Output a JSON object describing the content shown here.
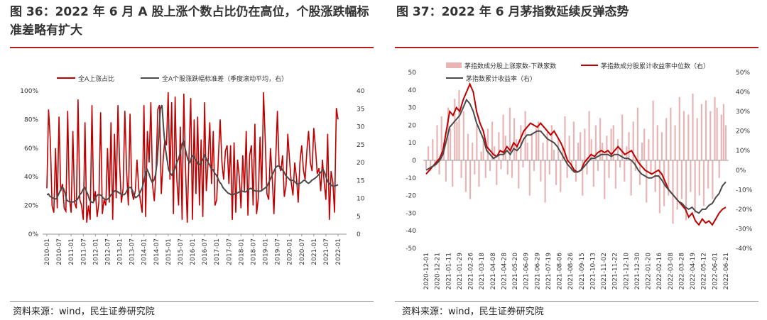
{
  "left_panel": {
    "title": "图 36：2022 年 6 月 A 股上涨个数占比仍在高位，个股涨跌幅标准差略有扩大",
    "source": "资料来源：wind，民生证券研究院"
  },
  "right_panel": {
    "title": "图 37：2022 年 6 月茅指数延续反弹态势",
    "source": "资料来源：wind，民生证券研究院"
  },
  "colors": {
    "red": "#c00000",
    "dark": "#4a4a4a",
    "pink": "#e8b4b4",
    "accent": "#b71c1c"
  },
  "chart_data": [
    {
      "type": "line",
      "title": "",
      "legend_position": "top",
      "x_ticks": [
        "2010-01",
        "2010-07",
        "2011-01",
        "2011-07",
        "2012-01",
        "2012-07",
        "2013-01",
        "2013-07",
        "2014-01",
        "2014-07",
        "2015-01",
        "2015-07",
        "2016-01",
        "2016-07",
        "2017-01",
        "2017-07",
        "2018-01",
        "2018-07",
        "2019-01",
        "2019-07",
        "2020-01",
        "2020-07",
        "2021-01",
        "2021-07",
        "2022-01"
      ],
      "y_left_ticks": [
        "0%",
        "20%",
        "40%",
        "60%",
        "80%",
        "100%"
      ],
      "y_right_ticks": [
        "0",
        "5",
        "10",
        "15",
        "20",
        "25",
        "30",
        "35",
        "40"
      ],
      "ylim_left": [
        0,
        1
      ],
      "ylim_right": [
        0,
        40
      ],
      "series": [
        {
          "name": "全A上涨占比",
          "axis": "left",
          "color": "#c00000",
          "values": [
            0.32,
            0.87,
            0.65,
            0.2,
            0.15,
            0.6,
            0.18,
            0.82,
            0.3,
            0.35,
            0.18,
            0.16,
            0.86,
            0.25,
            0.15,
            0.72,
            0.22,
            0.18,
            0.94,
            0.24,
            0.2,
            0.1,
            0.78,
            0.08,
            0.2,
            0.1,
            0.9,
            0.23,
            0.3,
            0.12,
            0.22,
            0.85,
            0.14,
            0.24,
            0.2,
            0.6,
            0.22,
            0.78,
            0.1,
            0.7,
            0.25,
            0.9,
            0.48,
            0.22,
            0.32,
            0.86,
            0.44,
            0.2,
            0.84,
            0.3,
            0.24,
            0.3,
            0.52,
            0.32,
            0.23,
            0.15,
            0.9,
            0.12,
            0.72,
            0.5,
            0.92,
            0.34,
            0.23,
            0.45,
            0.87,
            0.9,
            0.28,
            0.5,
            0.66,
            0.62,
            0.99,
            0.38,
            0.92,
            0.14,
            0.96,
            0.38,
            0.2,
            0.75,
            0.1,
            0.98,
            0.46,
            0.08,
            0.55,
            0.95,
            0.1,
            0.8,
            0.28,
            0.82,
            0.2,
            0.66,
            0.12,
            0.92,
            0.3,
            0.5,
            0.78,
            0.35,
            0.72,
            0.2,
            0.24,
            0.55,
            0.8,
            0.5,
            0.38,
            0.58,
            0.62,
            0.35,
            0.62,
            0.1,
            0.64,
            0.15,
            0.52,
            0.4,
            0.18,
            0.55,
            0.3,
            0.72,
            0.13,
            0.55,
            0.62,
            0.2,
            0.77,
            0.14,
            0.25,
            0.68,
            0.3,
            0.99,
            0.65,
            0.28,
            0.24,
            0.6,
            0.4,
            0.14,
            0.5,
            0.86,
            0.48,
            0.44,
            0.55,
            0.26,
            0.34,
            0.7,
            0.52,
            0.36,
            0.27,
            0.5,
            0.4,
            0.22,
            0.5,
            0.62,
            0.45,
            0.38,
            0.58,
            0.72,
            0.5,
            0.44,
            0.74,
            0.6,
            0.42,
            0.46,
            0.3,
            0.52,
            0.36,
            0.24,
            0.7,
            0.1,
            0.44,
            0.36,
            0.15,
            0.88,
            0.8
          ]
        },
        {
          "name": "全A个股涨跌幅标准差（季度滚动平均，右）",
          "axis": "right",
          "color": "#4a4a4a",
          "values": [
            11,
            11.2,
            10.5,
            10.3,
            10,
            9.8,
            10,
            11,
            12,
            13,
            12.8,
            11.5,
            9.5,
            9.2,
            9,
            9,
            9,
            9.2,
            9.4,
            10,
            11,
            11.5,
            12.5,
            13,
            12,
            11,
            9.5,
            9,
            8.8,
            9.5,
            10.5,
            11,
            11,
            10.8,
            10.2,
            9.8,
            9.5,
            9.8,
            10.2,
            11,
            11.4,
            12,
            12.2,
            11.8,
            11.5,
            11.2,
            11,
            11,
            11.5,
            12.5,
            13,
            13,
            12.2,
            10.8,
            10.2,
            10.5,
            11,
            12,
            13,
            15,
            17,
            18,
            17,
            15.5,
            14.5,
            15,
            16.5,
            20,
            27,
            35,
            36,
            29,
            24,
            21,
            18,
            17,
            16.5,
            17.5,
            18.5,
            20,
            21,
            22.5,
            25,
            26,
            24,
            22,
            20.5,
            20,
            21.5,
            22,
            21,
            20.5,
            19.5,
            19.5,
            20.2,
            21,
            22,
            21,
            20,
            19.3,
            18.2,
            18,
            17,
            16.5,
            15.5,
            14.5,
            14,
            13,
            12.5,
            12,
            11.5,
            11.3,
            11,
            11,
            11.2,
            11.5,
            11.5,
            11.8,
            12,
            12,
            11.8,
            11.8,
            12.2,
            12.6,
            12.8,
            12.5,
            12.2,
            12,
            12,
            12,
            12,
            12.3,
            12.7,
            13,
            13.5,
            14.5,
            15.5,
            16.5,
            17.5,
            18.5,
            19,
            19,
            18.8,
            18,
            17.5,
            16.5,
            16,
            15.5,
            15,
            15,
            15,
            14.5,
            14,
            14,
            14.2,
            14.5,
            15,
            15,
            14.5,
            14.2,
            14.5,
            15,
            15.3,
            15.6,
            16,
            16.5,
            17,
            17.5,
            18,
            17,
            15.5,
            14.5,
            14,
            13.6,
            13.4,
            13.4,
            13.6,
            13.8
          ]
        }
      ]
    },
    {
      "type": "bar+line",
      "title": "",
      "legend_position": "top",
      "x_ticks": [
        "2020-12-01",
        "2020-12-21",
        "2021-01-11",
        "2021-01-29",
        "2021-02-26",
        "2021-03-18",
        "2021-04-08",
        "2021-04-28",
        "2021-05-20",
        "2021-06-09",
        "2021-06-29",
        "2021-07-19",
        "2021-08-06",
        "2021-08-26",
        "2021-09-15",
        "2021-10-13",
        "2021-11-02",
        "2021-11-22",
        "2021-12-10",
        "2021-12-30",
        "2022-01-20",
        "2022-02-16",
        "2022-03-08",
        "2022-03-28",
        "2022-04-19",
        "2022-05-12",
        "2022-06-01",
        "2022-06-21"
      ],
      "x_tick_labels": [
        "2020-12-01",
        "2020-12-21",
        "2021-01-11",
        "2021-01-29",
        "2021-02-26",
        "2021-03-18",
        "2021-04-08",
        "2021-04-28",
        "2021-05-20",
        "2021-06-09",
        "2021-06-29",
        "2021-07-19",
        "2021-08-06",
        "2021-08-26",
        "2021-09-15",
        "2021-10-13",
        "2021-11-02",
        "2021-11-22",
        "2021-12-10",
        "2021-12-30",
        "2022-01-20",
        "2022-02-16",
        "2022-03-08",
        "2022-03-28",
        "2022-04-19",
        "2022-05-12",
        "2022-06-01",
        "2022-06-21"
      ],
      "y_left_ticks": [
        "-50",
        "-40",
        "-30",
        "-20",
        "-10",
        "0",
        "10",
        "20",
        "30",
        "40",
        "50"
      ],
      "y_right_ticks": [
        "-40%",
        "-30%",
        "-20%",
        "-10%",
        "0%",
        "10%",
        "20%",
        "30%",
        "40%",
        "50%"
      ],
      "ylim_left": [
        -50,
        50
      ],
      "ylim_right": [
        -0.4,
        0.5
      ],
      "series": [
        {
          "name": "茅指数成分股上涨家数-下跌家数",
          "kind": "bar",
          "axis": "left",
          "color": "#e8b4b4",
          "values": [
            -5,
            8,
            -6,
            12,
            -4,
            20,
            -8,
            25,
            10,
            -12,
            30,
            18,
            -15,
            35,
            22,
            40,
            -10,
            28,
            -18,
            15,
            -22,
            10,
            -8,
            20,
            -15,
            5,
            12,
            -10,
            18,
            -6,
            22,
            8,
            -14,
            16,
            -5,
            26,
            14,
            -8,
            30,
            -10,
            24,
            12,
            -16,
            20,
            -4,
            28,
            10,
            -20,
            15,
            -6,
            18,
            22,
            -12,
            10,
            -24,
            16,
            -8,
            20,
            6,
            -14,
            12,
            -18,
            8,
            25,
            -10,
            14,
            -6,
            22,
            -12,
            10,
            16,
            -20,
            18,
            -8,
            28,
            12,
            -15,
            20,
            -6,
            24,
            10,
            -22,
            14,
            -10,
            18,
            20,
            -16,
            12,
            -4,
            26,
            -12,
            8,
            16,
            -20,
            22,
            -6,
            30,
            -14,
            10,
            18,
            -24,
            12,
            -8,
            34,
            -18,
            20,
            -30,
            16,
            -26,
            24,
            -20,
            30,
            -36,
            20,
            -28,
            36,
            -22,
            28,
            -34,
            26,
            -18,
            38,
            -30,
            24,
            -20,
            32,
            -26,
            34,
            -16,
            28,
            -22,
            36,
            30,
            -10,
            26,
            32,
            20
          ]
        },
        {
          "name": "茅指数成分股累计收益率中位数（右）",
          "kind": "line",
          "axis": "right",
          "color": "#c00000",
          "values": [
            -0.02,
            0.0,
            0.02,
            0.04,
            0.06,
            0.1,
            0.2,
            0.3,
            0.28,
            0.32,
            0.3,
            0.36,
            0.4,
            0.44,
            0.4,
            0.3,
            0.24,
            0.2,
            0.12,
            0.1,
            0.08,
            0.07,
            0.1,
            0.09,
            0.12,
            0.1,
            0.14,
            0.12,
            0.16,
            0.2,
            0.22,
            0.24,
            0.23,
            0.22,
            0.24,
            0.22,
            0.2,
            0.18,
            0.2,
            0.17,
            0.14,
            0.1,
            0.05,
            0.03,
            0.0,
            -0.01,
            0.0,
            0.04,
            0.06,
            0.08,
            0.07,
            0.09,
            0.1,
            0.09,
            0.1,
            0.08,
            0.1,
            0.12,
            0.1,
            0.08,
            0.09,
            0.1,
            0.07,
            0.04,
            0.02,
            0.0,
            -0.01,
            -0.02,
            -0.01,
            0.0,
            -0.02,
            -0.06,
            -0.1,
            -0.12,
            -0.14,
            -0.16,
            -0.18,
            -0.2,
            -0.24,
            -0.22,
            -0.26,
            -0.28,
            -0.25,
            -0.27,
            -0.26,
            -0.28,
            -0.25,
            -0.22,
            -0.2,
            -0.19
          ]
        },
        {
          "name": "茅指数累计收益率（右）",
          "kind": "line",
          "axis": "right",
          "color": "#4a4a4a",
          "values": [
            0.0,
            0.01,
            0.02,
            0.03,
            0.05,
            0.08,
            0.15,
            0.22,
            0.24,
            0.26,
            0.28,
            0.32,
            0.36,
            0.34,
            0.3,
            0.24,
            0.2,
            0.16,
            0.1,
            0.08,
            0.06,
            0.07,
            0.08,
            0.08,
            0.1,
            0.08,
            0.11,
            0.1,
            0.12,
            0.16,
            0.18,
            0.18,
            0.19,
            0.2,
            0.2,
            0.18,
            0.16,
            0.15,
            0.14,
            0.12,
            0.09,
            0.06,
            0.03,
            0.01,
            -0.01,
            -0.01,
            0.0,
            0.02,
            0.04,
            0.06,
            0.06,
            0.07,
            0.08,
            0.08,
            0.08,
            0.07,
            0.08,
            0.08,
            0.07,
            0.06,
            0.06,
            0.05,
            0.03,
            0.0,
            -0.02,
            -0.03,
            -0.04,
            -0.04,
            -0.03,
            -0.03,
            -0.05,
            -0.08,
            -0.1,
            -0.12,
            -0.14,
            -0.16,
            -0.17,
            -0.19,
            -0.2,
            -0.19,
            -0.21,
            -0.22,
            -0.2,
            -0.2,
            -0.18,
            -0.17,
            -0.14,
            -0.12,
            -0.08,
            -0.06
          ]
        }
      ]
    }
  ]
}
